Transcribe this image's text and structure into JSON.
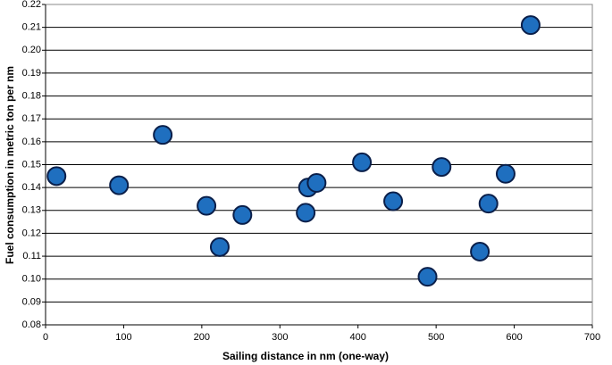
{
  "chart_data": {
    "type": "scatter",
    "xlabel": "Sailing distance in nm (one-way)",
    "ylabel": "Fuel consumption in metric ton per nm",
    "x": [
      14,
      94,
      150,
      206,
      223,
      252,
      333,
      336,
      347,
      405,
      445,
      489,
      507,
      556,
      567,
      589,
      621
    ],
    "values": [
      0.145,
      0.141,
      0.163,
      0.132,
      0.114,
      0.128,
      0.129,
      0.14,
      0.142,
      0.151,
      0.134,
      0.101,
      0.149,
      0.112,
      0.133,
      0.146,
      0.211
    ],
    "color": "#1f6fbf",
    "xlim": [
      0,
      700
    ],
    "xticks": [
      0,
      100,
      200,
      300,
      400,
      500,
      600,
      700
    ],
    "ylim": [
      0.08,
      0.22
    ],
    "yticks": [
      0.08,
      0.09,
      {
        "value": 0.1,
        "label": "0.10"
      },
      0.11,
      0.12,
      0.13,
      0.14,
      0.15,
      0.16,
      0.17,
      0.18,
      0.19,
      {
        "value": 0.2,
        "label": "0.20"
      },
      0.21,
      0.22
    ],
    "grid": true
  }
}
